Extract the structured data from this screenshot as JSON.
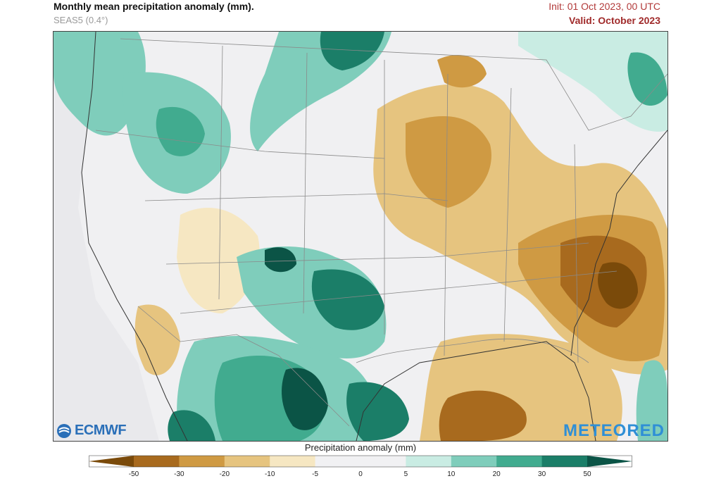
{
  "header": {
    "title": "Monthly mean precipitation anomaly (mm).",
    "subtitle": "SEAS5 (0.4°)",
    "init": "Init: 01 Oct 2023, 00 UTC",
    "valid": "Valid: October 2023"
  },
  "branding": {
    "left_logo": "ECMWF",
    "right_logo": "METEORED"
  },
  "colorbar": {
    "label": "Precipitation anomaly (mm)",
    "ticks": [
      "-50",
      "-30",
      "-20",
      "-10",
      "-5",
      "0",
      "5",
      "10",
      "20",
      "30",
      "50"
    ],
    "colors": [
      "#7a4a0a",
      "#a86a1e",
      "#cf9a43",
      "#e6c47f",
      "#f6e7c2",
      "#f1f1f3",
      "#f1f1f3",
      "#c9ece3",
      "#7fcdbb",
      "#41ab8f",
      "#1b7e68",
      "#0b5446"
    ]
  },
  "map": {
    "region": "Contiguous United States",
    "wet_color": "#1b7e68",
    "dry_color": "#a86a1e"
  }
}
